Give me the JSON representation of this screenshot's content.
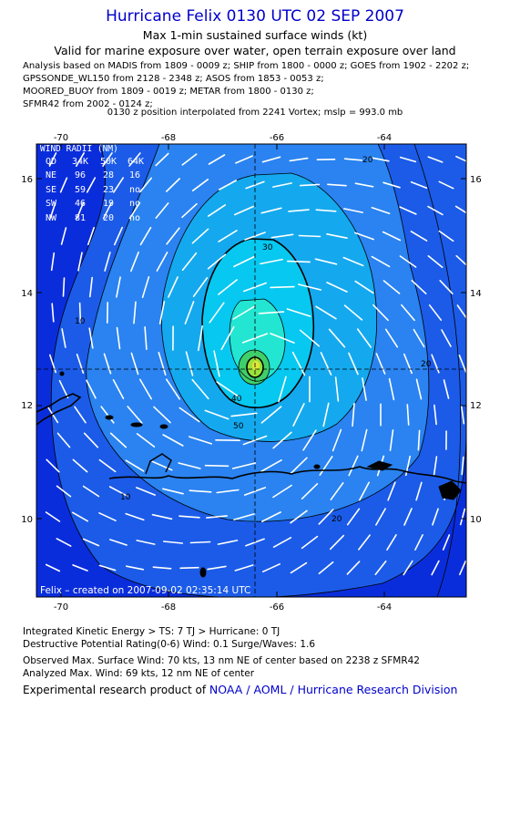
{
  "header": {
    "title": "Hurricane Felix 0130 UTC 02 SEP 2007",
    "subtitle": "Max 1-min sustained surface winds (kt)",
    "validity": "Valid for marine exposure over water, open terrain exposure over land",
    "sources": [
      "Analysis based on  MADIS from 1809 - 0009 z;  SHIP from 1800 - 0000 z;  GOES from 1902 - 2202 z;",
      "GPSSONDE_WL150 from 2128 - 2348 z;  ASOS from 1853 - 0053 z;",
      "MOORED_BUOY from 1809 - 0019 z;  METAR from 1800 - 0130 z;",
      "SFMR42 from 2002 - 0124 z;"
    ],
    "position_note": "0130 z position interpolated from 2241 Vortex; mslp = 993.0 mb"
  },
  "map": {
    "lon_ticks": [
      "-70",
      "-68",
      "-66",
      "-64"
    ],
    "lat_ticks": [
      "16",
      "14",
      "12",
      "10"
    ],
    "lon_range": [
      -70.5,
      -62.6
    ],
    "lat_range": [
      8.7,
      16.6
    ],
    "center": {
      "lon": -66.6,
      "lat": 12.6
    },
    "contour_labels": [
      "20",
      "30",
      "40",
      "50",
      "20",
      "20",
      "10",
      "10"
    ],
    "credit": "Felix  –  created on 2007-09-02 02:35:14 UTC",
    "colors": {
      "outer": "#0a2ddc",
      "band1": "#1b5be8",
      "band2": "#2a83f0",
      "band3": "#14a9ee",
      "band4": "#06c8f0",
      "band5": "#22e6d2",
      "core": "#3fcf6a"
    }
  },
  "wind_radii": {
    "header": [
      "QD",
      "34K",
      "50K",
      "64K"
    ],
    "title": "WIND RADII (NM)",
    "rows": [
      [
        "NE",
        "96",
        "28",
        "16"
      ],
      [
        "SE",
        "59",
        "23",
        "no"
      ],
      [
        "SW",
        "46",
        "19",
        "no"
      ],
      [
        "NW",
        "81",
        "20",
        "no"
      ]
    ]
  },
  "footer": {
    "ike": "Integrated Kinetic Energy > TS: 7 TJ   > Hurricane: 0 TJ",
    "destructive": "Destructive Potential Rating(0-6)   Wind: 0.1 Surge/Waves: 1.6",
    "observed": "Observed Max. Surface Wind: 70 kts, 13 nm NE of center based on 2238 z SFMR42",
    "analyzed": "Analyzed Max. Wind: 69 kts, 12 nm NE of center",
    "product_prefix": "Experimental research product of ",
    "product_org": "NOAA / AOML / Hurricane Research Division"
  }
}
